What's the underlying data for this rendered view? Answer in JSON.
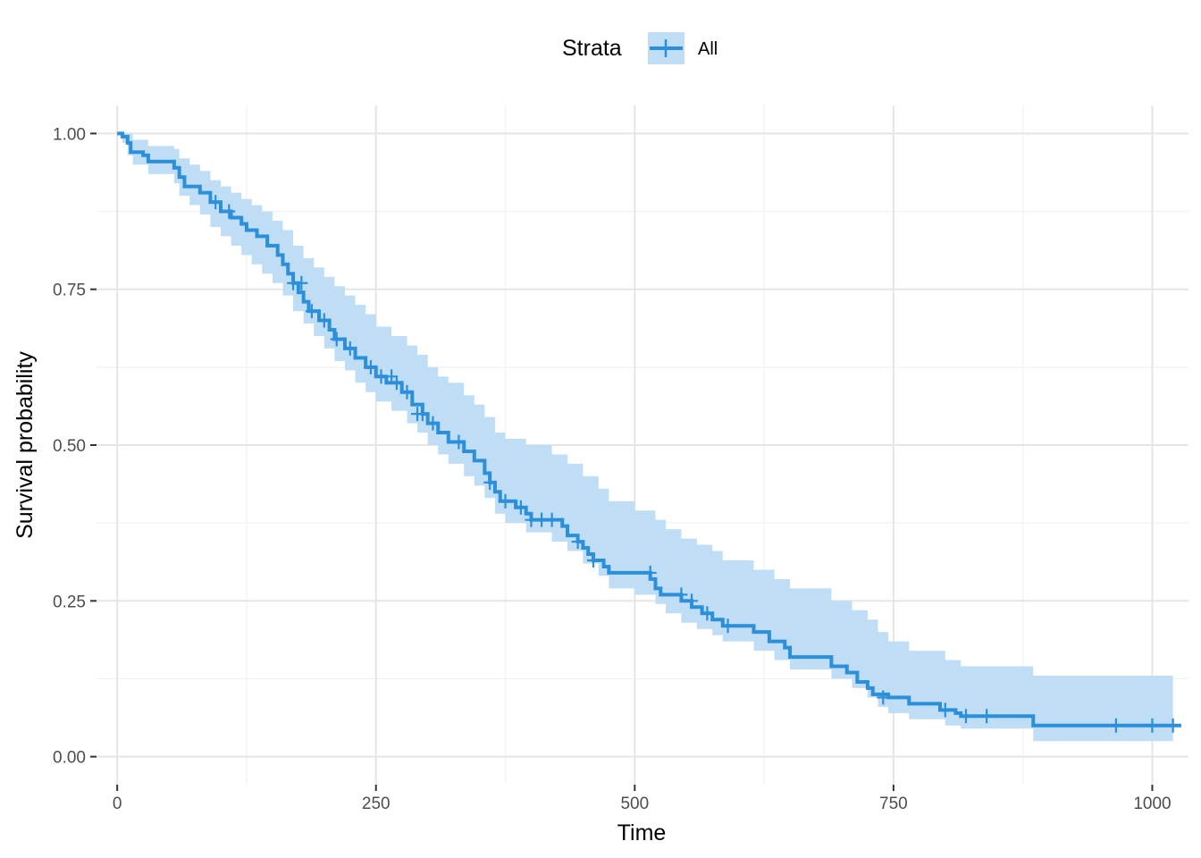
{
  "colors": {
    "line": "#2C8FD9",
    "band": "#BFDDF4",
    "grid_major": "#E5E5E5",
    "grid_minor": "#F2F2F2",
    "tick": "#333333"
  },
  "chart_data": {
    "type": "line",
    "title": "",
    "xlabel": "Time",
    "ylabel": "Survival probability",
    "xlim": [
      -20,
      1035
    ],
    "ylim": [
      -0.045,
      1.045
    ],
    "x_ticks": [
      0,
      250,
      500,
      750,
      1000
    ],
    "x_tick_labels": [
      "0",
      "250",
      "500",
      "750",
      "1000"
    ],
    "y_ticks": [
      0,
      0.25,
      0.5,
      0.75,
      1.0
    ],
    "y_tick_labels": [
      "0.00",
      "0.25",
      "0.50",
      "0.75",
      "1.00"
    ],
    "grid": true,
    "legend": {
      "title": "Strata",
      "position": "top",
      "entries": [
        "All"
      ]
    },
    "series": [
      {
        "name": "All",
        "step": [
          [
            0,
            1.0
          ],
          [
            5,
            0.995
          ],
          [
            10,
            0.985
          ],
          [
            13,
            0.97
          ],
          [
            25,
            0.965
          ],
          [
            30,
            0.955
          ],
          [
            55,
            0.945
          ],
          [
            60,
            0.93
          ],
          [
            65,
            0.915
          ],
          [
            80,
            0.905
          ],
          [
            90,
            0.89
          ],
          [
            100,
            0.875
          ],
          [
            110,
            0.865
          ],
          [
            120,
            0.855
          ],
          [
            125,
            0.845
          ],
          [
            135,
            0.835
          ],
          [
            145,
            0.82
          ],
          [
            155,
            0.805
          ],
          [
            160,
            0.79
          ],
          [
            165,
            0.775
          ],
          [
            170,
            0.76
          ],
          [
            175,
            0.745
          ],
          [
            180,
            0.73
          ],
          [
            185,
            0.715
          ],
          [
            195,
            0.7
          ],
          [
            205,
            0.685
          ],
          [
            210,
            0.67
          ],
          [
            220,
            0.655
          ],
          [
            230,
            0.64
          ],
          [
            240,
            0.625
          ],
          [
            250,
            0.61
          ],
          [
            260,
            0.6
          ],
          [
            275,
            0.585
          ],
          [
            285,
            0.565
          ],
          [
            295,
            0.55
          ],
          [
            300,
            0.535
          ],
          [
            310,
            0.52
          ],
          [
            320,
            0.505
          ],
          [
            335,
            0.49
          ],
          [
            345,
            0.475
          ],
          [
            355,
            0.455
          ],
          [
            360,
            0.44
          ],
          [
            365,
            0.425
          ],
          [
            370,
            0.41
          ],
          [
            385,
            0.4
          ],
          [
            395,
            0.39
          ],
          [
            400,
            0.38
          ],
          [
            430,
            0.37
          ],
          [
            435,
            0.355
          ],
          [
            445,
            0.345
          ],
          [
            450,
            0.335
          ],
          [
            455,
            0.325
          ],
          [
            460,
            0.315
          ],
          [
            470,
            0.305
          ],
          [
            475,
            0.295
          ],
          [
            515,
            0.285
          ],
          [
            520,
            0.27
          ],
          [
            525,
            0.26
          ],
          [
            545,
            0.25
          ],
          [
            555,
            0.24
          ],
          [
            565,
            0.23
          ],
          [
            575,
            0.22
          ],
          [
            585,
            0.21
          ],
          [
            615,
            0.2
          ],
          [
            630,
            0.185
          ],
          [
            645,
            0.175
          ],
          [
            650,
            0.16
          ],
          [
            690,
            0.145
          ],
          [
            705,
            0.135
          ],
          [
            715,
            0.12
          ],
          [
            725,
            0.11
          ],
          [
            730,
            0.1
          ],
          [
            745,
            0.095
          ],
          [
            765,
            0.085
          ],
          [
            795,
            0.075
          ],
          [
            810,
            0.07
          ],
          [
            815,
            0.065
          ],
          [
            885,
            0.05
          ],
          [
            1028,
            0.05
          ]
        ],
        "ci": [
          [
            0,
            1.0,
            1.0
          ],
          [
            5,
            0.985,
            1.0
          ],
          [
            10,
            0.965,
            1.0
          ],
          [
            15,
            0.95,
            0.99
          ],
          [
            30,
            0.935,
            0.98
          ],
          [
            55,
            0.92,
            0.975
          ],
          [
            60,
            0.9,
            0.96
          ],
          [
            70,
            0.885,
            0.95
          ],
          [
            80,
            0.87,
            0.94
          ],
          [
            90,
            0.85,
            0.925
          ],
          [
            100,
            0.835,
            0.915
          ],
          [
            110,
            0.82,
            0.905
          ],
          [
            120,
            0.805,
            0.895
          ],
          [
            130,
            0.79,
            0.885
          ],
          [
            140,
            0.775,
            0.875
          ],
          [
            150,
            0.76,
            0.86
          ],
          [
            160,
            0.74,
            0.845
          ],
          [
            170,
            0.715,
            0.82
          ],
          [
            180,
            0.695,
            0.8
          ],
          [
            190,
            0.675,
            0.785
          ],
          [
            200,
            0.655,
            0.77
          ],
          [
            210,
            0.635,
            0.755
          ],
          [
            220,
            0.62,
            0.74
          ],
          [
            230,
            0.6,
            0.725
          ],
          [
            240,
            0.585,
            0.71
          ],
          [
            250,
            0.57,
            0.69
          ],
          [
            265,
            0.555,
            0.675
          ],
          [
            280,
            0.535,
            0.66
          ],
          [
            290,
            0.52,
            0.645
          ],
          [
            300,
            0.5,
            0.625
          ],
          [
            310,
            0.485,
            0.61
          ],
          [
            320,
            0.47,
            0.6
          ],
          [
            335,
            0.45,
            0.58
          ],
          [
            345,
            0.435,
            0.565
          ],
          [
            355,
            0.415,
            0.545
          ],
          [
            365,
            0.39,
            0.52
          ],
          [
            375,
            0.375,
            0.51
          ],
          [
            395,
            0.36,
            0.5
          ],
          [
            420,
            0.345,
            0.485
          ],
          [
            435,
            0.33,
            0.47
          ],
          [
            450,
            0.31,
            0.45
          ],
          [
            465,
            0.29,
            0.43
          ],
          [
            475,
            0.27,
            0.41
          ],
          [
            500,
            0.26,
            0.395
          ],
          [
            520,
            0.245,
            0.38
          ],
          [
            530,
            0.23,
            0.365
          ],
          [
            545,
            0.215,
            0.35
          ],
          [
            560,
            0.205,
            0.34
          ],
          [
            575,
            0.195,
            0.33
          ],
          [
            585,
            0.185,
            0.315
          ],
          [
            615,
            0.17,
            0.3
          ],
          [
            635,
            0.155,
            0.285
          ],
          [
            650,
            0.14,
            0.27
          ],
          [
            690,
            0.125,
            0.25
          ],
          [
            710,
            0.11,
            0.235
          ],
          [
            725,
            0.095,
            0.22
          ],
          [
            735,
            0.08,
            0.2
          ],
          [
            745,
            0.07,
            0.185
          ],
          [
            765,
            0.06,
            0.17
          ],
          [
            800,
            0.05,
            0.155
          ],
          [
            815,
            0.045,
            0.145
          ],
          [
            885,
            0.025,
            0.13
          ],
          [
            1020,
            0.025,
            0.12
          ]
        ],
        "censored": [
          [
            95,
            0.89
          ],
          [
            108,
            0.875
          ],
          [
            170,
            0.76
          ],
          [
            178,
            0.76
          ],
          [
            188,
            0.715
          ],
          [
            200,
            0.7
          ],
          [
            212,
            0.67
          ],
          [
            225,
            0.655
          ],
          [
            245,
            0.625
          ],
          [
            255,
            0.61
          ],
          [
            265,
            0.61
          ],
          [
            270,
            0.6
          ],
          [
            280,
            0.585
          ],
          [
            290,
            0.55
          ],
          [
            295,
            0.55
          ],
          [
            305,
            0.535
          ],
          [
            330,
            0.505
          ],
          [
            360,
            0.44
          ],
          [
            375,
            0.41
          ],
          [
            390,
            0.4
          ],
          [
            400,
            0.38
          ],
          [
            410,
            0.38
          ],
          [
            420,
            0.38
          ],
          [
            445,
            0.345
          ],
          [
            460,
            0.315
          ],
          [
            515,
            0.295
          ],
          [
            545,
            0.26
          ],
          [
            555,
            0.25
          ],
          [
            570,
            0.23
          ],
          [
            590,
            0.21
          ],
          [
            740,
            0.095
          ],
          [
            800,
            0.075
          ],
          [
            820,
            0.065
          ],
          [
            840,
            0.065
          ],
          [
            965,
            0.05
          ],
          [
            1000,
            0.05
          ],
          [
            1020,
            0.05
          ]
        ]
      }
    ]
  }
}
